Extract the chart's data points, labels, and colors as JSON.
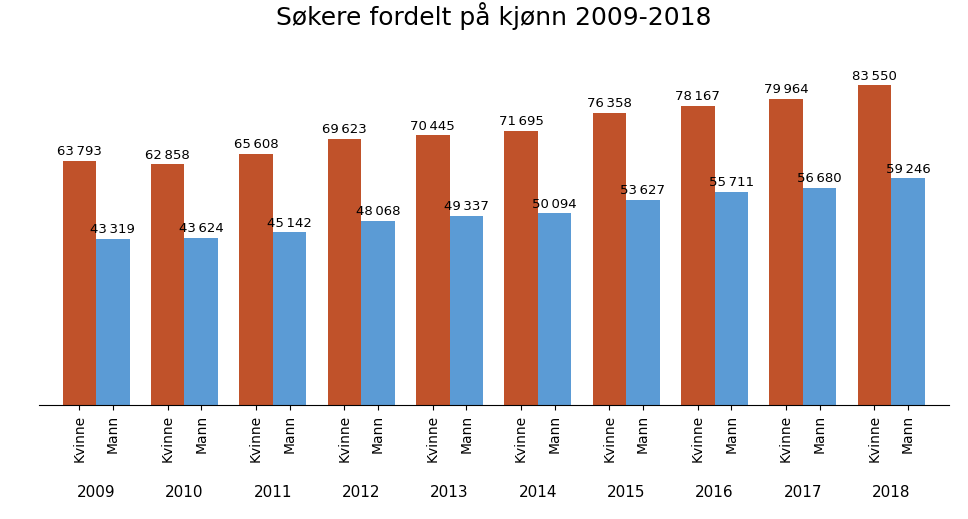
{
  "title": "Søkere fordelt på kjønn 2009-2018",
  "years": [
    2009,
    2010,
    2011,
    2012,
    2013,
    2014,
    2015,
    2016,
    2017,
    2018
  ],
  "kvinne": [
    63793,
    62858,
    65608,
    69623,
    70445,
    71695,
    76358,
    78167,
    79964,
    83550
  ],
  "mann": [
    43319,
    43624,
    45142,
    48068,
    49337,
    50094,
    53627,
    55711,
    56680,
    59246
  ],
  "color_kvinne": "#C0522A",
  "color_mann": "#5B9BD5",
  "bar_width": 0.38,
  "ylim": [
    0,
    95000
  ],
  "label_kvinne": "Kvinne",
  "label_mann": "Mann",
  "background_color": "#FFFFFF",
  "title_fontsize": 18,
  "value_fontsize": 9.5,
  "tick_fontsize": 10,
  "year_fontsize": 11
}
